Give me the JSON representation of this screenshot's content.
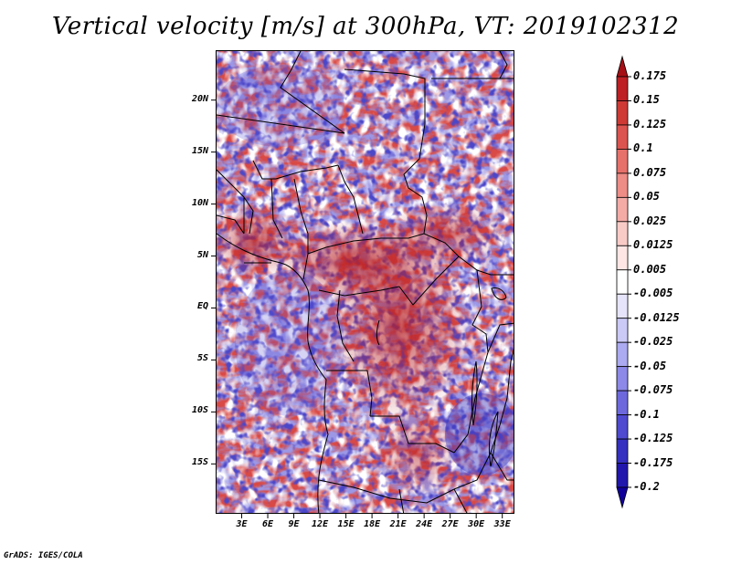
{
  "title": "Vertical velocity [m/s] at 300hPa, VT: 2019102312",
  "footer": "GrADS: IGES/COLA",
  "map": {
    "lat_range": [
      -19.8,
      24.8
    ],
    "lon_range": [
      0.0,
      34.4
    ],
    "y_axis_labels": [
      {
        "lat": 20,
        "label": "20N"
      },
      {
        "lat": 15,
        "label": "15N"
      },
      {
        "lat": 10,
        "label": "10N"
      },
      {
        "lat": 5,
        "label": "5N"
      },
      {
        "lat": 0,
        "label": "EQ"
      },
      {
        "lat": -5,
        "label": "5S"
      },
      {
        "lat": -10,
        "label": "10S"
      },
      {
        "lat": -15,
        "label": "15S"
      }
    ],
    "x_axis_labels": [
      {
        "lon": 3,
        "label": "3E"
      },
      {
        "lon": 6,
        "label": "6E"
      },
      {
        "lon": 9,
        "label": "9E"
      },
      {
        "lon": 12,
        "label": "12E"
      },
      {
        "lon": 15,
        "label": "15E"
      },
      {
        "lon": 18,
        "label": "18E"
      },
      {
        "lon": 21,
        "label": "21E"
      },
      {
        "lon": 24,
        "label": "24E"
      },
      {
        "lon": 27,
        "label": "27E"
      },
      {
        "lon": 30,
        "label": "30E"
      },
      {
        "lon": 33,
        "label": "33E"
      }
    ]
  },
  "colorbar": {
    "levels": [
      "0.175",
      "0.15",
      "0.125",
      "0.1",
      "0.075",
      "0.05",
      "0.025",
      "0.0125",
      "0.005",
      "-0.005",
      "-0.0125",
      "-0.025",
      "-0.05",
      "-0.075",
      "-0.1",
      "-0.125",
      "-0.175",
      "-0.2"
    ],
    "colors": [
      "#a50f15",
      "#bd1f24",
      "#cf3a35",
      "#dc5450",
      "#e6716a",
      "#ee8c86",
      "#f4aba6",
      "#f9cbc7",
      "#fde6e4",
      "#ffffff",
      "#e5e4fb",
      "#cbc9f6",
      "#acaaf0",
      "#8c89e8",
      "#6d69dd",
      "#4f4ad0",
      "#3530c0",
      "#2117ad",
      "#12009a"
    ]
  }
}
